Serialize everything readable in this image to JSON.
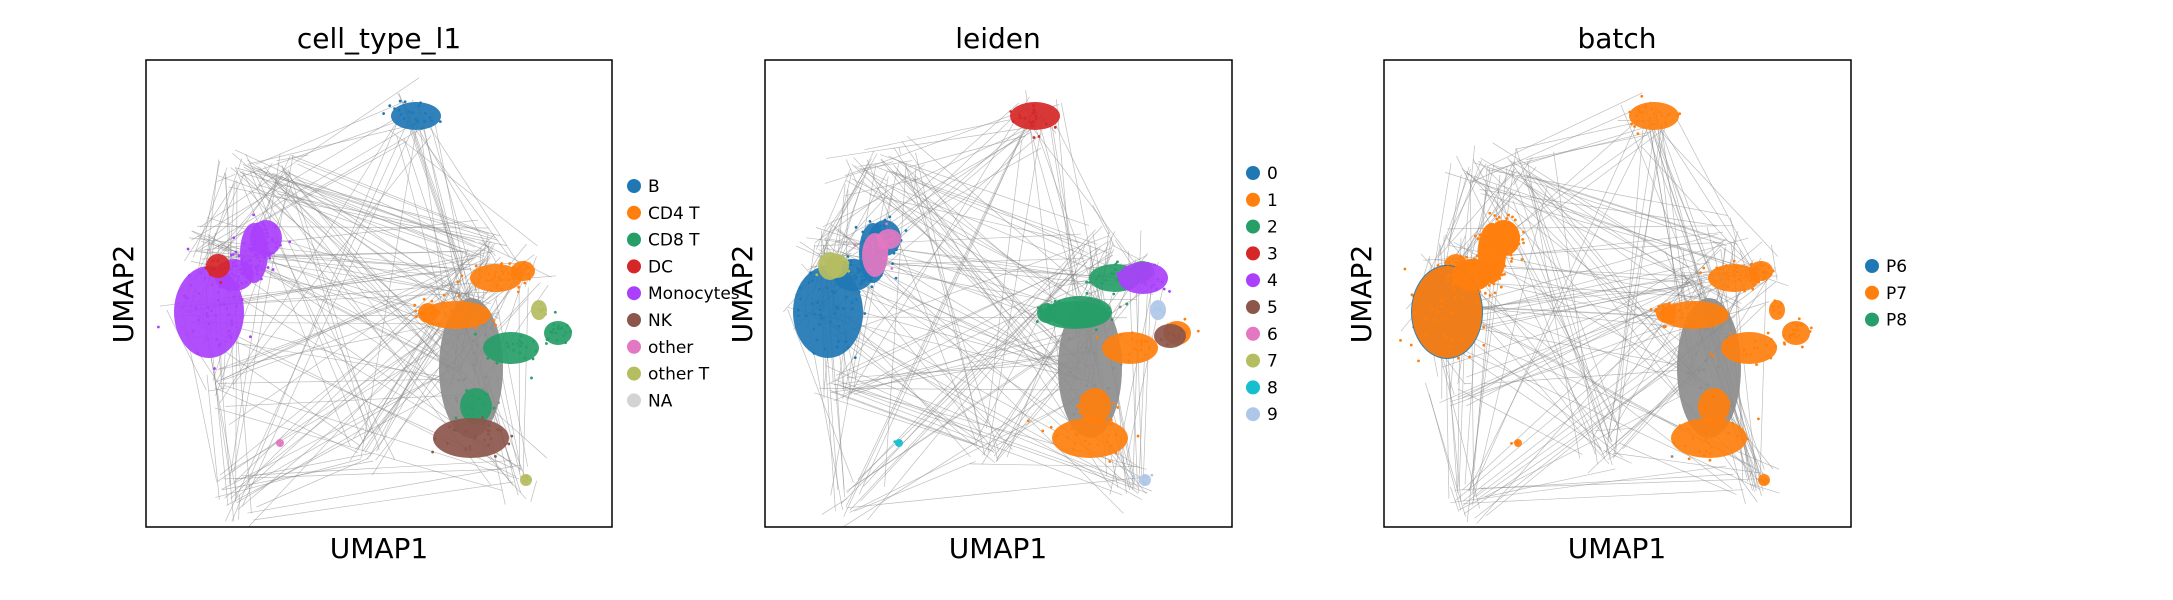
{
  "chart_data": [
    {
      "type": "scatter",
      "title": "cell_type_l1",
      "xlabel": "UMAP1",
      "ylabel": "UMAP2",
      "grid": false,
      "legend_position": "right",
      "edges": "gray connectivity graph edges drawn between clusters",
      "series": [
        {
          "name": "B",
          "color": "#1f77b4"
        },
        {
          "name": "CD4 T",
          "color": "#ff7f0e"
        },
        {
          "name": "CD8 T",
          "color": "#279e68"
        },
        {
          "name": "DC",
          "color": "#d62728"
        },
        {
          "name": "Monocytes",
          "color": "#aa40fc"
        },
        {
          "name": "NK",
          "color": "#8c564b"
        },
        {
          "name": "other",
          "color": "#e377c2"
        },
        {
          "name": "other T",
          "color": "#b5bd61"
        },
        {
          "name": "NA",
          "color": "#d3d3d3"
        }
      ]
    },
    {
      "type": "scatter",
      "title": "leiden",
      "xlabel": "UMAP1",
      "ylabel": "UMAP2",
      "grid": false,
      "legend_position": "right",
      "edges": "gray connectivity graph edges drawn between clusters",
      "series": [
        {
          "name": "0",
          "color": "#1f77b4"
        },
        {
          "name": "1",
          "color": "#ff7f0e"
        },
        {
          "name": "2",
          "color": "#279e68"
        },
        {
          "name": "3",
          "color": "#d62728"
        },
        {
          "name": "4",
          "color": "#aa40fc"
        },
        {
          "name": "5",
          "color": "#8c564b"
        },
        {
          "name": "6",
          "color": "#e377c2"
        },
        {
          "name": "7",
          "color": "#b5bd61"
        },
        {
          "name": "8",
          "color": "#17becf"
        },
        {
          "name": "9",
          "color": "#aec7e8"
        }
      ]
    },
    {
      "type": "scatter",
      "title": "batch",
      "xlabel": "UMAP1",
      "ylabel": "UMAP2",
      "grid": false,
      "legend_position": "right",
      "edges": "gray connectivity graph edges drawn between clusters",
      "series": [
        {
          "name": "P6",
          "color": "#1f77b4"
        },
        {
          "name": "P7",
          "color": "#ff7f0e"
        },
        {
          "name": "P8",
          "color": "#279e68"
        }
      ]
    }
  ]
}
